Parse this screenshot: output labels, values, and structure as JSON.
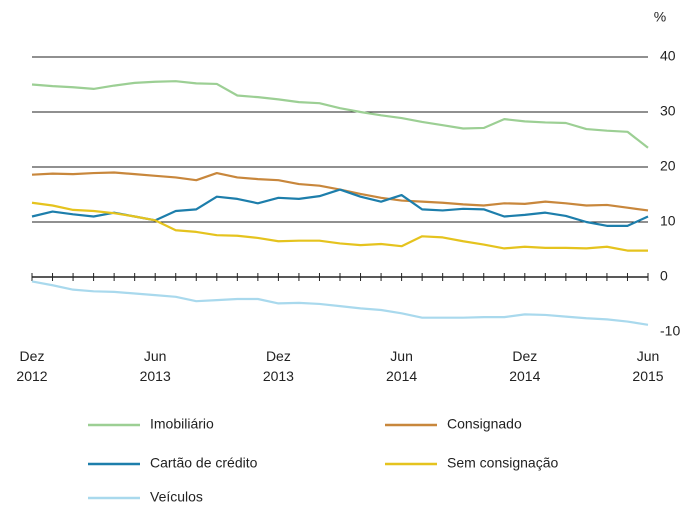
{
  "chart_data": {
    "type": "line",
    "unit": "%",
    "categories": [
      "Dez\n2012",
      null,
      null,
      null,
      null,
      null,
      "Jun\n2013",
      null,
      null,
      null,
      null,
      null,
      "Dez\n2013",
      null,
      null,
      null,
      null,
      null,
      "Jun\n2014",
      null,
      null,
      null,
      null,
      null,
      "Dez\n2014",
      null,
      null,
      null,
      null,
      null,
      "Jun\n2015"
    ],
    "ylim": [
      -10,
      40
    ],
    "yticks": [
      -10,
      0,
      10,
      20,
      30,
      40
    ],
    "grid": true,
    "series": [
      {
        "name": "Imobiliário",
        "color": "#9ccf94",
        "values": [
          35,
          34.7,
          34.5,
          34.2,
          34.8,
          35.3,
          35.5,
          35.6,
          35.2,
          35.1,
          33,
          32.7,
          32.3,
          31.8,
          31.6,
          30.7,
          30,
          29.4,
          28.9,
          28.2,
          27.6,
          27,
          27.1,
          28.7,
          28.3,
          28.1,
          28,
          26.9,
          26.6,
          26.4,
          23.5
        ]
      },
      {
        "name": "Consignado",
        "color": "#c8873c",
        "values": [
          18.6,
          18.8,
          18.7,
          18.9,
          19,
          18.7,
          18.4,
          18.1,
          17.6,
          18.9,
          18.1,
          17.8,
          17.6,
          16.9,
          16.6,
          15.9,
          15.1,
          14.4,
          13.9,
          13.7,
          13.5,
          13.2,
          13,
          13.4,
          13.3,
          13.7,
          13.4,
          13,
          13.1,
          12.6,
          12.1
        ]
      },
      {
        "name": "Cartão de crédito",
        "color": "#1d7eab",
        "values": [
          11,
          11.9,
          11.4,
          11,
          11.7,
          11,
          10.3,
          12,
          12.3,
          14.6,
          14.2,
          13.4,
          14.4,
          14.2,
          14.7,
          15.9,
          14.6,
          13.7,
          14.9,
          12.3,
          12.1,
          12.4,
          12.3,
          11,
          11.3,
          11.7,
          11.1,
          10,
          9.3,
          9.3,
          11
        ]
      },
      {
        "name": "Sem consignação",
        "color": "#e5c31e",
        "values": [
          13.5,
          13,
          12.2,
          12,
          11.6,
          11,
          10.3,
          8.5,
          8.2,
          7.6,
          7.5,
          7.1,
          6.5,
          6.6,
          6.6,
          6.1,
          5.8,
          6,
          5.6,
          7.4,
          7.2,
          6.5,
          5.9,
          5.2,
          5.5,
          5.3,
          5.3,
          5.2,
          5.5,
          4.8,
          4.8
        ]
      },
      {
        "name": "Veículos",
        "color": "#a9d9ed",
        "values": [
          -0.8,
          -1.5,
          -2.3,
          -2.6,
          -2.7,
          -3,
          -3.3,
          -3.6,
          -4.4,
          -4.2,
          -4,
          -4,
          -4.8,
          -4.7,
          -4.9,
          -5.3,
          -5.7,
          -6,
          -6.6,
          -7.4,
          -7.4,
          -7.4,
          -7.3,
          -7.3,
          -6.8,
          -6.9,
          -7.2,
          -7.5,
          -7.7,
          -8.1,
          -8.7
        ]
      }
    ]
  }
}
